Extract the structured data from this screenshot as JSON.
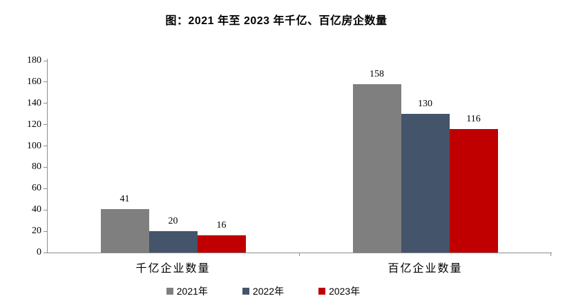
{
  "title": "图：2021 年至 2023 年千亿、百亿房企数量",
  "chart_data": {
    "type": "bar",
    "title": "图：2021 年至 2023 年千亿、百亿房企数量",
    "categories": [
      "千亿企业数量",
      "百亿企业数量"
    ],
    "series": [
      {
        "name": "2021年",
        "color": "#7F7F7F",
        "values": [
          41,
          158
        ]
      },
      {
        "name": "2022年",
        "color": "#44546A",
        "values": [
          20,
          130
        ]
      },
      {
        "name": "2023年",
        "color": "#C00000",
        "values": [
          16,
          116
        ]
      }
    ],
    "ylim": [
      0,
      180
    ],
    "yticks": [
      0,
      20,
      40,
      60,
      80,
      100,
      120,
      140,
      160,
      180
    ],
    "xlabel": "",
    "ylabel": "",
    "grid": false,
    "value_labels": true,
    "legend_position": "bottom"
  },
  "colors": {
    "axis": "#8C8C8C",
    "text": "#000000",
    "background": "#FFFFFF"
  }
}
